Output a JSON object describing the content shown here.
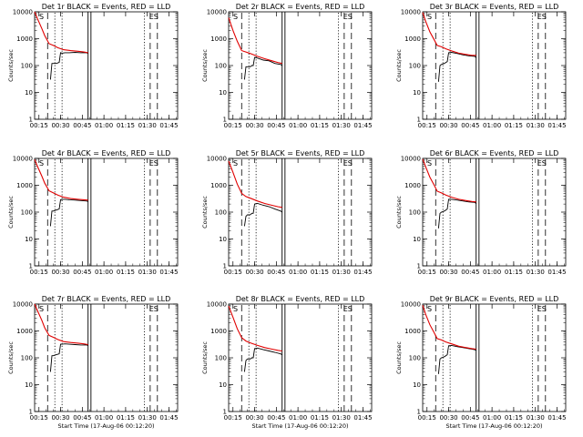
{
  "colors": {
    "events": "#000000",
    "lld": "#e00000",
    "background": "#ffffff"
  },
  "chart_data": {
    "type": "line",
    "layout": "3x3 grid of panels",
    "y_scale": "log",
    "ylim": [
      1,
      10000
    ],
    "y_ticks": [
      "1",
      "10",
      "100",
      "1000",
      "10000"
    ],
    "x_ticks": [
      "00:15",
      "00:30",
      "00:45",
      "01:00",
      "01:15",
      "01:30",
      "01:45"
    ],
    "xlim_minutes_after_00:12": [
      0,
      99
    ],
    "series_legend": [
      "BLACK = Events",
      "RED = LLD"
    ],
    "marker_label_left": "S",
    "marker_label_right": "ES",
    "panels": [
      {
        "title": "Det 1r  BLACK = Events, RED = LLD",
        "ylabel": "Counts/sec",
        "xlabel": "",
        "lld": {
          "t": [
            0,
            2,
            5,
            7,
            10,
            13,
            16,
            20,
            25,
            30,
            34,
            37
          ],
          "v": [
            10000,
            5500,
            2400,
            1300,
            650,
            560,
            460,
            390,
            360,
            340,
            320,
            300
          ]
        },
        "events": {
          "t": [
            11,
            12,
            13,
            15,
            17,
            18,
            19,
            21,
            24,
            28,
            32,
            36,
            37
          ],
          "v": [
            30,
            120,
            120,
            120,
            130,
            300,
            290,
            300,
            300,
            310,
            300,
            300,
            280
          ]
        }
      },
      {
        "title": "Det 2r  BLACK = Events, RED = LLD",
        "ylabel": "Counts/sec",
        "xlabel": "",
        "lld": {
          "t": [
            0,
            3,
            6,
            9,
            12,
            15,
            20,
            25,
            30,
            34,
            37
          ],
          "v": [
            6000,
            2000,
            800,
            360,
            320,
            280,
            220,
            180,
            150,
            130,
            120
          ]
        },
        "events": {
          "t": [
            11,
            12,
            13,
            15,
            16,
            17,
            18,
            20,
            24,
            28,
            32,
            36,
            37
          ],
          "v": [
            30,
            90,
            90,
            90,
            100,
            100,
            200,
            190,
            160,
            150,
            120,
            110,
            100
          ]
        }
      },
      {
        "title": "Det 3r  BLACK = Events, RED = LLD",
        "ylabel": "Counts/sec",
        "xlabel": "",
        "lld": {
          "t": [
            0,
            2,
            5,
            8,
            10,
            13,
            16,
            20,
            25,
            30,
            34,
            37
          ],
          "v": [
            9500,
            4500,
            1800,
            900,
            560,
            500,
            420,
            350,
            290,
            260,
            240,
            240
          ]
        },
        "events": {
          "t": [
            11,
            12,
            13,
            15,
            16,
            17,
            18,
            20,
            24,
            28,
            32,
            36,
            37
          ],
          "v": [
            25,
            100,
            110,
            120,
            130,
            140,
            300,
            310,
            280,
            250,
            230,
            220,
            200
          ]
        }
      },
      {
        "title": "Det 4r  BLACK = Events, RED = LLD",
        "ylabel": "Counts/sec",
        "xlabel": "",
        "lld": {
          "t": [
            0,
            2,
            5,
            7,
            10,
            13,
            16,
            20,
            25,
            30,
            34,
            37
          ],
          "v": [
            9000,
            5000,
            2200,
            1200,
            620,
            520,
            430,
            360,
            320,
            300,
            290,
            280
          ]
        },
        "events": {
          "t": [
            11,
            12,
            13,
            15,
            17,
            18,
            19,
            21,
            24,
            28,
            32,
            36,
            37
          ],
          "v": [
            30,
            110,
            110,
            120,
            130,
            290,
            300,
            300,
            290,
            280,
            270,
            260,
            250
          ]
        }
      },
      {
        "title": "Det 5r  BLACK = Events, RED = LLD",
        "ylabel": "Counts/sec",
        "xlabel": "",
        "lld": {
          "t": [
            0,
            3,
            6,
            9,
            12,
            15,
            20,
            25,
            30,
            34,
            37
          ],
          "v": [
            8000,
            3000,
            1100,
            500,
            380,
            330,
            260,
            210,
            180,
            160,
            150
          ]
        },
        "events": {
          "t": [
            11,
            12,
            13,
            15,
            16,
            17,
            18,
            20,
            24,
            28,
            32,
            36,
            37
          ],
          "v": [
            30,
            70,
            80,
            80,
            90,
            90,
            200,
            210,
            180,
            160,
            130,
            110,
            100
          ]
        }
      },
      {
        "title": "Det 6r  BLACK = Events, RED = LLD",
        "ylabel": "Counts/sec",
        "xlabel": "",
        "lld": {
          "t": [
            0,
            2,
            5,
            8,
            10,
            13,
            16,
            20,
            25,
            30,
            34,
            37
          ],
          "v": [
            9500,
            5000,
            2000,
            1000,
            600,
            520,
            430,
            360,
            300,
            270,
            250,
            240
          ]
        },
        "events": {
          "t": [
            11,
            12,
            13,
            15,
            16,
            17,
            18,
            20,
            24,
            28,
            32,
            36,
            37
          ],
          "v": [
            25,
            90,
            100,
            110,
            120,
            130,
            300,
            300,
            280,
            260,
            240,
            230,
            210
          ]
        }
      },
      {
        "title": "Det 7r  BLACK = Events, RED = LLD",
        "ylabel": "Counts/sec",
        "xlabel": "Start Time (17-Aug-06 00:12:20)",
        "lld": {
          "t": [
            0,
            2,
            5,
            7,
            10,
            13,
            16,
            20,
            25,
            30,
            34,
            37
          ],
          "v": [
            10000,
            5600,
            2500,
            1300,
            680,
            580,
            480,
            400,
            370,
            350,
            330,
            310
          ]
        },
        "events": {
          "t": [
            11,
            12,
            13,
            15,
            17,
            18,
            19,
            21,
            24,
            28,
            32,
            36,
            37
          ],
          "v": [
            30,
            120,
            120,
            130,
            140,
            320,
            320,
            330,
            320,
            310,
            300,
            300,
            290
          ]
        }
      },
      {
        "title": "Det 8r  BLACK = Events, RED = LLD",
        "ylabel": "Counts/sec",
        "xlabel": "Start Time (17-Aug-06 00:12:20)",
        "lld": {
          "t": [
            0,
            3,
            6,
            9,
            12,
            15,
            20,
            25,
            30,
            34,
            37
          ],
          "v": [
            8500,
            3200,
            1200,
            560,
            420,
            360,
            290,
            240,
            210,
            190,
            180
          ]
        },
        "events": {
          "t": [
            11,
            12,
            13,
            15,
            16,
            17,
            18,
            20,
            24,
            28,
            32,
            36,
            37
          ],
          "v": [
            30,
            80,
            90,
            90,
            100,
            100,
            220,
            230,
            200,
            180,
            160,
            140,
            130
          ]
        }
      },
      {
        "title": "Det 9r  BLACK = Events, RED = LLD",
        "ylabel": "Counts/sec",
        "xlabel": "Start Time (17-Aug-06 00:12:20)",
        "lld": {
          "t": [
            0,
            2,
            5,
            8,
            10,
            13,
            16,
            20,
            25,
            30,
            34,
            37
          ],
          "v": [
            9000,
            4200,
            1700,
            850,
            520,
            460,
            390,
            330,
            270,
            240,
            220,
            210
          ]
        },
        "events": {
          "t": [
            11,
            12,
            13,
            15,
            16,
            17,
            18,
            20,
            24,
            28,
            32,
            36,
            37
          ],
          "v": [
            25,
            90,
            100,
            110,
            120,
            130,
            280,
            290,
            260,
            240,
            220,
            200,
            190
          ]
        }
      }
    ],
    "vertical_lines_minutes": {
      "dashed_long": [
        9,
        80,
        85
      ],
      "dotted": [
        14,
        19,
        76
      ],
      "solid": [
        37,
        39
      ]
    }
  }
}
